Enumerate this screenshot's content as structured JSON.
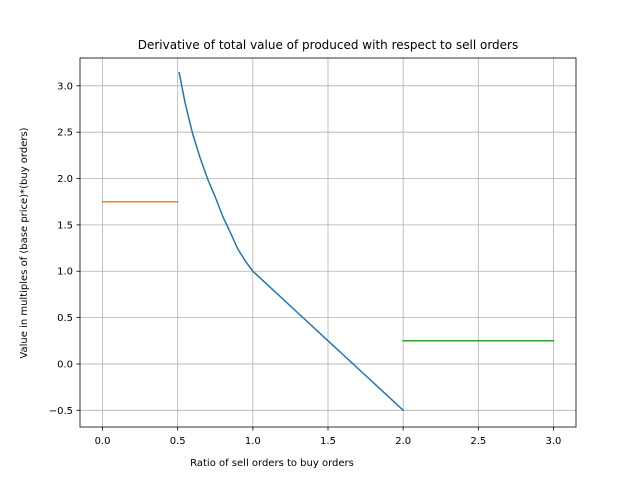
{
  "chart_data": {
    "type": "line",
    "title": "Derivative of total value of produced with respect to sell orders",
    "xlabel": "Ratio of sell orders to buy orders",
    "ylabel": "Value in multiples of (base price)*(buy orders)",
    "xlim": [
      -0.15,
      3.15
    ],
    "ylim": [
      -0.68,
      3.3
    ],
    "grid": true,
    "x_ticks": [
      0.0,
      0.5,
      1.0,
      1.5,
      2.0,
      2.5,
      3.0
    ],
    "x_tick_labels": [
      "0.0",
      "0.5",
      "1.0",
      "1.5",
      "2.0",
      "2.5",
      "3.0"
    ],
    "y_ticks": [
      -0.5,
      0.0,
      0.5,
      1.0,
      1.5,
      2.0,
      2.5,
      3.0
    ],
    "y_tick_labels": [
      "−0.5",
      "0.0",
      "0.5",
      "1.0",
      "1.5",
      "2.0",
      "2.5",
      "3.0"
    ],
    "series": [
      {
        "color": "#1f77b4",
        "x": [
          0.51,
          0.55,
          0.6,
          0.65,
          0.7,
          0.75,
          0.8,
          0.85,
          0.9,
          0.95,
          1.0,
          1.25,
          1.5,
          1.75,
          2.0
        ],
        "y": [
          3.14,
          2.81,
          2.48,
          2.22,
          1.99,
          1.8,
          1.59,
          1.42,
          1.24,
          1.11,
          1.0,
          0.625,
          0.25,
          -0.125,
          -0.5
        ]
      },
      {
        "color": "#ff7f0e",
        "x": [
          0.0,
          0.5
        ],
        "y": [
          1.75,
          1.75
        ]
      },
      {
        "color": "#2ca02c",
        "x": [
          2.0,
          3.0
        ],
        "y": [
          0.25,
          0.25
        ]
      }
    ]
  }
}
